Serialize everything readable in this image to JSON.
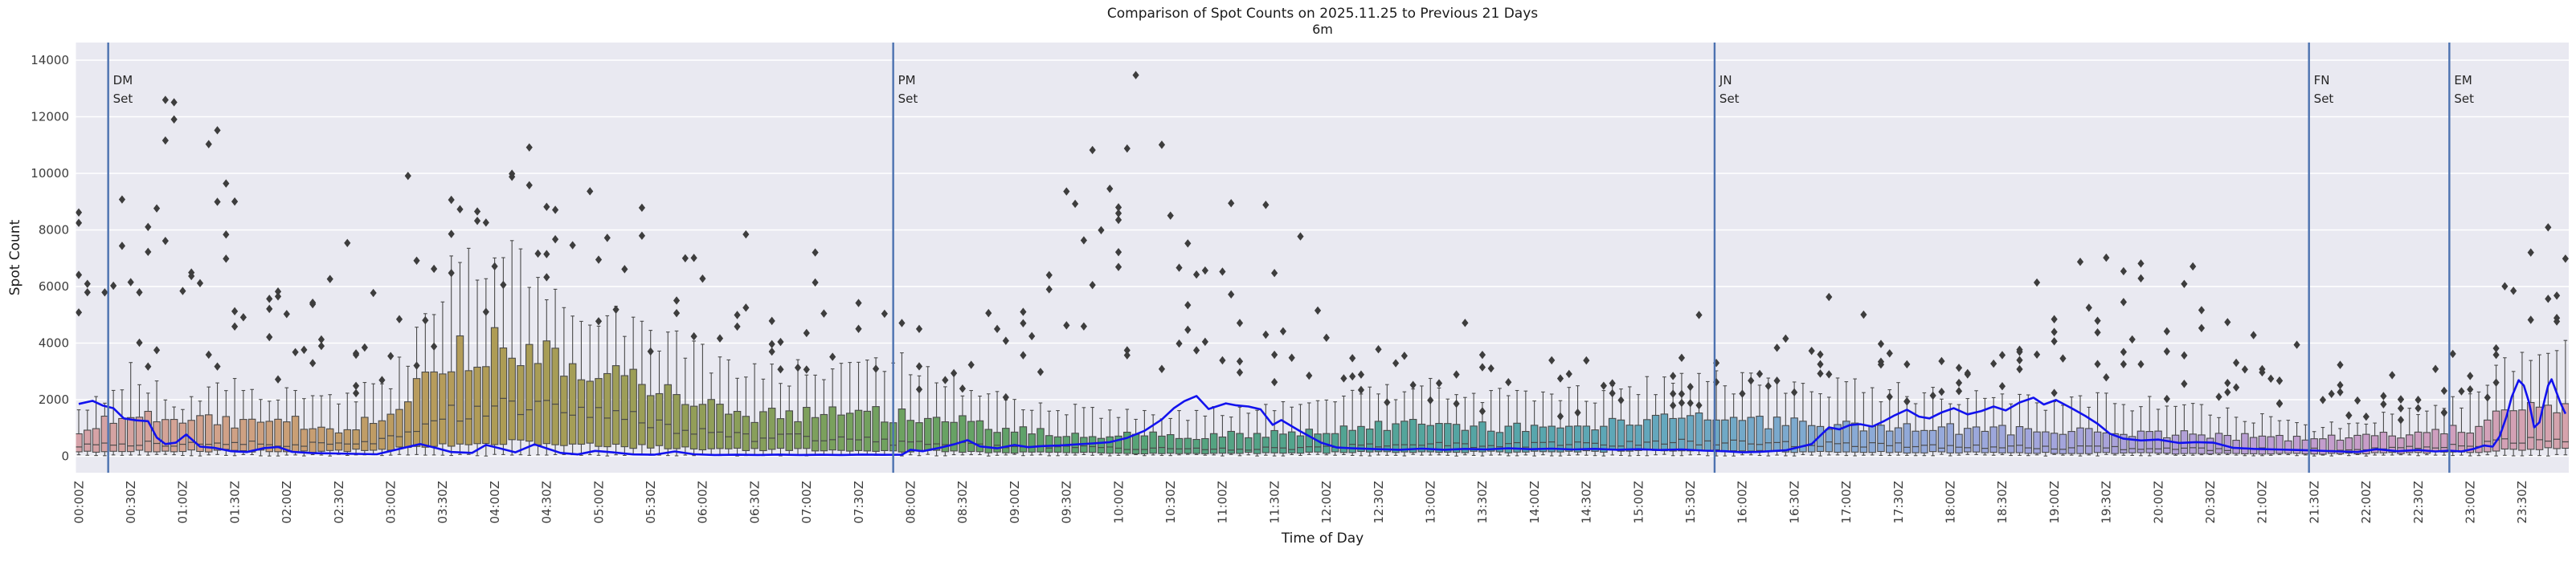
{
  "title": "Comparison of Spot Counts on 2025.11.25 to Previous 21 Days",
  "subtitle": "6m",
  "axes": {
    "xlabel": "Time of Day",
    "ylabel": "Spot Count",
    "ytick_values": [
      0,
      2000,
      4000,
      6000,
      8000,
      10000,
      12000,
      14000
    ],
    "ytick_labels": [
      "0",
      "2000",
      "4000",
      "6000",
      "8000",
      "10000",
      "12000",
      "14000"
    ],
    "xtick_labels": [
      "00:00Z",
      "00:30Z",
      "01:00Z",
      "01:30Z",
      "02:00Z",
      "02:30Z",
      "03:00Z",
      "03:30Z",
      "04:00Z",
      "04:30Z",
      "05:00Z",
      "05:30Z",
      "06:00Z",
      "06:30Z",
      "07:00Z",
      "07:30Z",
      "08:00Z",
      "08:30Z",
      "09:00Z",
      "09:30Z",
      "10:00Z",
      "10:30Z",
      "11:00Z",
      "11:30Z",
      "12:00Z",
      "12:30Z",
      "13:00Z",
      "13:30Z",
      "14:00Z",
      "14:30Z",
      "15:00Z",
      "15:30Z",
      "16:00Z",
      "16:30Z",
      "17:00Z",
      "17:30Z",
      "18:00Z",
      "18:30Z",
      "19:00Z",
      "19:30Z",
      "20:00Z",
      "20:30Z",
      "21:00Z",
      "21:30Z",
      "22:00Z",
      "22:30Z",
      "23:00Z",
      "23:30Z"
    ],
    "ylim": [
      -600,
      14600
    ],
    "grid": "horizontal-only"
  },
  "event_lines": [
    {
      "label_lines": [
        "DM",
        "Set"
      ],
      "minutes": 17
    },
    {
      "label_lines": [
        "PM",
        "Set"
      ],
      "minutes": 470
    },
    {
      "label_lines": [
        "JN",
        "Set"
      ],
      "minutes": 944
    },
    {
      "label_lines": [
        "FN",
        "Set"
      ],
      "minutes": 1287
    },
    {
      "label_lines": [
        "EM",
        "Set"
      ],
      "minutes": 1368
    }
  ],
  "colors": {
    "background": "#ffffff",
    "plot_bg": "#e9e9f1",
    "grid": "#ffffff",
    "box_edge": "#4a4a4a",
    "flier": "#3d3d3d",
    "today_line": "#1212ee",
    "event_line": "#4c72b0",
    "title_text": "#1a1a1a",
    "tick_text": "#3d3d3d"
  },
  "palette_by_hour": [
    "#d6a3ab",
    "#d4a394",
    "#cb9f78",
    "#bd9c62",
    "#af9c55",
    "#a29e57",
    "#929e58",
    "#7fa05c",
    "#6ca260",
    "#60a268",
    "#58a374",
    "#54a382",
    "#52a490",
    "#53a59e",
    "#57a6ac",
    "#60a7ba",
    "#72a9c8",
    "#87aad4",
    "#97a9db",
    "#a3a5dd",
    "#aea1d8",
    "#bb9ed3",
    "#c89dc9",
    "#d1a0bb"
  ],
  "seed": 20251125,
  "chart_data": {
    "type": "boxplot+scatter+line",
    "bin_minutes": 5,
    "box_stats_30min": {
      "columns": [
        "q1",
        "median",
        "q3",
        "whisker_high"
      ],
      "values": [
        [
          150,
          380,
          950,
          1550
        ],
        [
          200,
          450,
          1450,
          2800
        ],
        [
          180,
          420,
          1250,
          1900
        ],
        [
          200,
          450,
          1200,
          2300
        ],
        [
          150,
          400,
          1200,
          2200
        ],
        [
          180,
          420,
          1000,
          2100
        ],
        [
          250,
          600,
          1300,
          2400
        ],
        [
          400,
          1400,
          3300,
          5800
        ],
        [
          500,
          1750,
          3900,
          6500
        ],
        [
          450,
          1800,
          3600,
          6200
        ],
        [
          400,
          1550,
          3000,
          5200
        ],
        [
          320,
          1150,
          2400,
          4300
        ],
        [
          260,
          800,
          1800,
          3400
        ],
        [
          230,
          620,
          1400,
          2800
        ],
        [
          230,
          640,
          1450,
          2900
        ],
        [
          210,
          560,
          1500,
          3200
        ],
        [
          180,
          450,
          1400,
          3100
        ],
        [
          160,
          400,
          1200,
          2400
        ],
        [
          130,
          330,
          900,
          1800
        ],
        [
          120,
          300,
          800,
          1600
        ],
        [
          110,
          280,
          750,
          1500
        ],
        [
          100,
          250,
          700,
          1450
        ],
        [
          110,
          260,
          720,
          1500
        ],
        [
          120,
          280,
          800,
          1600
        ],
        [
          130,
          320,
          900,
          1800
        ],
        [
          150,
          380,
          1050,
          2100
        ],
        [
          160,
          400,
          1100,
          2300
        ],
        [
          150,
          380,
          1000,
          2000
        ],
        [
          160,
          400,
          1050,
          2000
        ],
        [
          170,
          420,
          1100,
          2100
        ],
        [
          180,
          450,
          1150,
          2300
        ],
        [
          200,
          500,
          1300,
          2900
        ],
        [
          180,
          450,
          1200,
          2500
        ],
        [
          160,
          420,
          1150,
          2400
        ],
        [
          150,
          400,
          1100,
          2300
        ],
        [
          140,
          380,
          1050,
          2200
        ],
        [
          130,
          350,
          950,
          2000
        ],
        [
          120,
          320,
          900,
          1900
        ],
        [
          110,
          300,
          850,
          1800
        ],
        [
          110,
          290,
          850,
          1900
        ],
        [
          100,
          280,
          800,
          1800
        ],
        [
          90,
          250,
          700,
          1500
        ],
        [
          90,
          240,
          650,
          1300
        ],
        [
          80,
          230,
          580,
          1000
        ],
        [
          100,
          280,
          700,
          1300
        ],
        [
          120,
          320,
          800,
          1500
        ],
        [
          150,
          400,
          1000,
          2000
        ],
        [
          250,
          550,
          1800,
          3650
        ]
      ]
    },
    "outliers_30min": {
      "columns": [
        "low",
        "typical_high",
        "max",
        "count"
      ],
      "values": [
        [
          2600,
          7000,
          9800,
          10
        ],
        [
          3000,
          9000,
          13500,
          13
        ],
        [
          2800,
          8000,
          12200,
          12
        ],
        [
          2500,
          7000,
          10800,
          10
        ],
        [
          2300,
          5500,
          8000,
          9
        ],
        [
          2200,
          6000,
          9800,
          8
        ],
        [
          2600,
          7000,
          10500,
          8
        ],
        [
          4500,
          9000,
          11200,
          8
        ],
        [
          5000,
          9000,
          11000,
          7
        ],
        [
          4800,
          8000,
          9700,
          7
        ],
        [
          4000,
          7500,
          9500,
          7
        ],
        [
          3500,
          7000,
          9000,
          6
        ],
        [
          3200,
          6500,
          8200,
          6
        ],
        [
          3000,
          6000,
          7600,
          6
        ],
        [
          2600,
          5500,
          7300,
          6
        ],
        [
          2200,
          4500,
          6200,
          5
        ],
        [
          2000,
          4000,
          5400,
          5
        ],
        [
          2000,
          4200,
          5600,
          6
        ],
        [
          2000,
          5000,
          7000,
          7
        ],
        [
          2500,
          7500,
          11900,
          9
        ],
        [
          3000,
          9000,
          14100,
          11
        ],
        [
          3500,
          9000,
          12600,
          10
        ],
        [
          2800,
          6500,
          9200,
          9
        ],
        [
          2200,
          5000,
          7800,
          8
        ],
        [
          1800,
          3200,
          4600,
          6
        ],
        [
          1600,
          3000,
          4200,
          5
        ],
        [
          1500,
          3200,
          4800,
          5
        ],
        [
          1500,
          2800,
          3800,
          5
        ],
        [
          1400,
          2600,
          3600,
          5
        ],
        [
          1500,
          2800,
          3800,
          5
        ],
        [
          1600,
          3000,
          4200,
          6
        ],
        [
          1800,
          3600,
          5200,
          6
        ],
        [
          2000,
          4200,
          6300,
          7
        ],
        [
          2200,
          4200,
          6100,
          7
        ],
        [
          2000,
          4000,
          5800,
          6
        ],
        [
          1800,
          3400,
          4800,
          6
        ],
        [
          1800,
          3200,
          4600,
          6
        ],
        [
          2000,
          4200,
          6200,
          8
        ],
        [
          2200,
          5000,
          7400,
          10
        ],
        [
          2200,
          5000,
          7300,
          10
        ],
        [
          2000,
          4800,
          7400,
          9
        ],
        [
          1800,
          3400,
          4800,
          8
        ],
        [
          1500,
          2900,
          4000,
          8
        ],
        [
          1300,
          2400,
          3400,
          8
        ],
        [
          1200,
          2300,
          3300,
          8
        ],
        [
          1400,
          2800,
          4200,
          8
        ],
        [
          2000,
          4500,
          6600,
          8
        ],
        [
          4200,
          6500,
          8100,
          8
        ]
      ]
    },
    "today_line_points": [
      [
        0,
        1850
      ],
      [
        8,
        1960
      ],
      [
        14,
        1790
      ],
      [
        20,
        1700
      ],
      [
        26,
        1340
      ],
      [
        33,
        1270
      ],
      [
        40,
        1240
      ],
      [
        45,
        660
      ],
      [
        50,
        430
      ],
      [
        56,
        480
      ],
      [
        62,
        770
      ],
      [
        70,
        340
      ],
      [
        78,
        300
      ],
      [
        88,
        180
      ],
      [
        97,
        150
      ],
      [
        107,
        290
      ],
      [
        115,
        330
      ],
      [
        123,
        160
      ],
      [
        135,
        110
      ],
      [
        148,
        100
      ],
      [
        160,
        85
      ],
      [
        172,
        70
      ],
      [
        185,
        260
      ],
      [
        197,
        430
      ],
      [
        207,
        280
      ],
      [
        215,
        150
      ],
      [
        227,
        120
      ],
      [
        235,
        400
      ],
      [
        243,
        280
      ],
      [
        252,
        140
      ],
      [
        263,
        420
      ],
      [
        270,
        280
      ],
      [
        278,
        120
      ],
      [
        288,
        65
      ],
      [
        298,
        190
      ],
      [
        308,
        140
      ],
      [
        320,
        65
      ],
      [
        332,
        55
      ],
      [
        344,
        170
      ],
      [
        355,
        70
      ],
      [
        367,
        45
      ],
      [
        380,
        55
      ],
      [
        392,
        45
      ],
      [
        404,
        60
      ],
      [
        416,
        45
      ],
      [
        428,
        55
      ],
      [
        440,
        45
      ],
      [
        452,
        60
      ],
      [
        464,
        50
      ],
      [
        475,
        55
      ],
      [
        480,
        230
      ],
      [
        487,
        180
      ],
      [
        497,
        300
      ],
      [
        505,
        420
      ],
      [
        513,
        570
      ],
      [
        520,
        350
      ],
      [
        530,
        280
      ],
      [
        540,
        400
      ],
      [
        548,
        320
      ],
      [
        556,
        360
      ],
      [
        566,
        380
      ],
      [
        576,
        420
      ],
      [
        585,
        455
      ],
      [
        595,
        500
      ],
      [
        605,
        650
      ],
      [
        615,
        900
      ],
      [
        625,
        1300
      ],
      [
        632,
        1700
      ],
      [
        638,
        1950
      ],
      [
        645,
        2130
      ],
      [
        652,
        1670
      ],
      [
        662,
        1870
      ],
      [
        668,
        1800
      ],
      [
        675,
        1760
      ],
      [
        682,
        1660
      ],
      [
        689,
        1110
      ],
      [
        694,
        1280
      ],
      [
        705,
        880
      ],
      [
        717,
        480
      ],
      [
        726,
        310
      ],
      [
        735,
        280
      ],
      [
        750,
        250
      ],
      [
        762,
        230
      ],
      [
        775,
        270
      ],
      [
        788,
        230
      ],
      [
        800,
        260
      ],
      [
        812,
        240
      ],
      [
        825,
        280
      ],
      [
        838,
        250
      ],
      [
        850,
        270
      ],
      [
        862,
        240
      ],
      [
        875,
        260
      ],
      [
        888,
        230
      ],
      [
        900,
        250
      ],
      [
        912,
        220
      ],
      [
        925,
        240
      ],
      [
        938,
        200
      ],
      [
        950,
        180
      ],
      [
        960,
        140
      ],
      [
        970,
        160
      ],
      [
        985,
        210
      ],
      [
        1000,
        430
      ],
      [
        1006,
        790
      ],
      [
        1010,
        1020
      ],
      [
        1016,
        950
      ],
      [
        1022,
        1100
      ],
      [
        1028,
        1134
      ],
      [
        1035,
        1050
      ],
      [
        1042,
        1250
      ],
      [
        1048,
        1450
      ],
      [
        1055,
        1645
      ],
      [
        1062,
        1400
      ],
      [
        1068,
        1340
      ],
      [
        1075,
        1550
      ],
      [
        1082,
        1700
      ],
      [
        1090,
        1480
      ],
      [
        1098,
        1600
      ],
      [
        1105,
        1760
      ],
      [
        1112,
        1620
      ],
      [
        1120,
        1900
      ],
      [
        1128,
        2070
      ],
      [
        1134,
        1830
      ],
      [
        1141,
        1990
      ],
      [
        1150,
        1700
      ],
      [
        1158,
        1420
      ],
      [
        1165,
        1150
      ],
      [
        1172,
        800
      ],
      [
        1180,
        620
      ],
      [
        1190,
        560
      ],
      [
        1200,
        590
      ],
      [
        1212,
        470
      ],
      [
        1222,
        500
      ],
      [
        1232,
        480
      ],
      [
        1243,
        300
      ],
      [
        1255,
        260
      ],
      [
        1268,
        240
      ],
      [
        1280,
        220
      ],
      [
        1292,
        200
      ],
      [
        1305,
        170
      ],
      [
        1315,
        150
      ],
      [
        1326,
        250
      ],
      [
        1338,
        180
      ],
      [
        1350,
        220
      ],
      [
        1360,
        170
      ],
      [
        1368,
        200
      ],
      [
        1375,
        170
      ],
      [
        1382,
        260
      ],
      [
        1388,
        380
      ],
      [
        1393,
        340
      ],
      [
        1397,
        700
      ],
      [
        1401,
        1400
      ],
      [
        1404,
        2100
      ],
      [
        1408,
        2690
      ],
      [
        1411,
        2500
      ],
      [
        1414,
        1900
      ],
      [
        1417,
        1020
      ],
      [
        1420,
        1200
      ],
      [
        1423,
        2000
      ],
      [
        1425,
        2500
      ],
      [
        1427,
        2720
      ],
      [
        1429,
        2400
      ],
      [
        1432,
        1900
      ],
      [
        1435,
        1500
      ]
    ]
  }
}
